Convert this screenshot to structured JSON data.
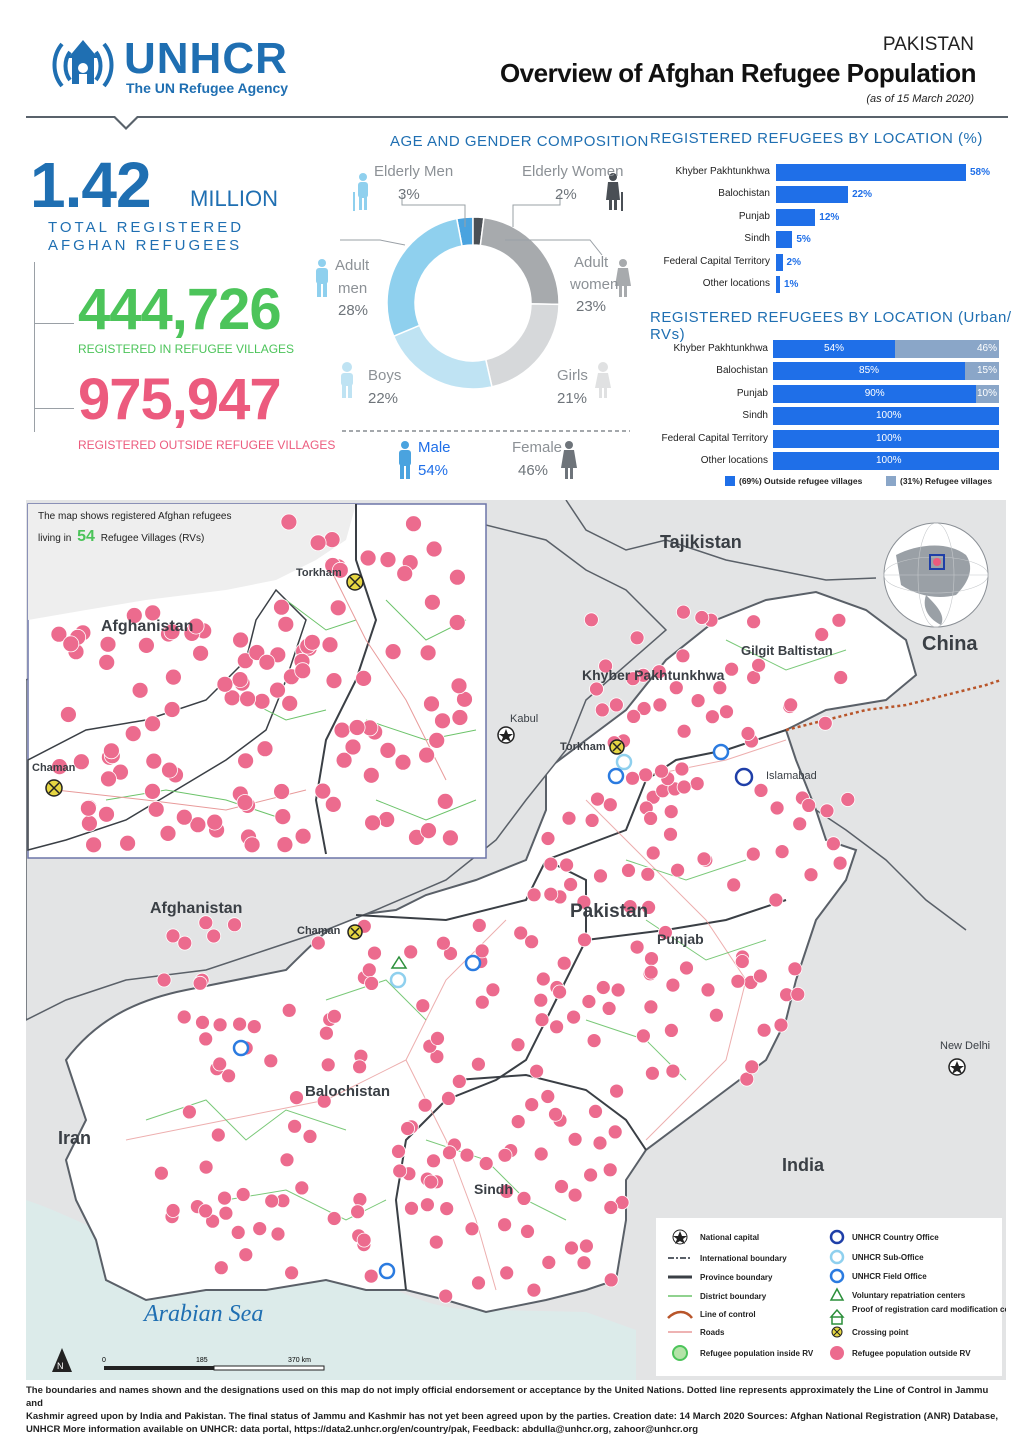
{
  "header": {
    "org_name": "UNHCR",
    "org_tagline": "The UN Refugee Agency",
    "country": "PAKISTAN",
    "title": "Overview of Afghan Refugee Population",
    "as_of": "(as of 15 March 2020)"
  },
  "totals": {
    "total_value": "1.42",
    "total_unit": "MILLION",
    "total_label_line1": "TOTAL REGISTERED",
    "total_label_line2": "AFGHAN REFUGEES",
    "in_rv_value": "444,726",
    "in_rv_label": "REGISTERED IN REFUGEE VILLAGES",
    "outside_rv_value": "975,947",
    "outside_rv_label": "REGISTERED OUTSIDE REFUGEE VILLAGES"
  },
  "age_gender": {
    "title": "AGE AND GENDER COMPOSITION",
    "groups": [
      {
        "label_1": "Elderly Men",
        "label_2": "",
        "pct": "3%",
        "value": 3
      },
      {
        "label_1": "Elderly Women",
        "label_2": "",
        "pct": "2%",
        "value": 2
      },
      {
        "label_1": "Adult",
        "label_2": "women",
        "pct": "23%",
        "value": 23
      },
      {
        "label_1": "Girls",
        "label_2": "",
        "pct": "21%",
        "value": 21
      },
      {
        "label_1": "Boys",
        "label_2": "",
        "pct": "22%",
        "value": 22
      },
      {
        "label_1": "Adult",
        "label_2": "men",
        "pct": "28%",
        "value": 28
      }
    ],
    "male_label": "Male",
    "male_pct": "54%",
    "female_label": "Female",
    "female_pct": "46%",
    "colors": {
      "elderly_men": "#4aa3df",
      "elderly_women": "#4a4f55",
      "adult_women": "#a7aaad",
      "girls": "#d6d8da",
      "boys": "#bfe3f3",
      "adult_men": "#8fd0ee"
    }
  },
  "by_location": {
    "title": "REGISTERED REFUGEES BY LOCATION (%)",
    "rows": [
      {
        "label": "Khyber Pakhtunkhwa",
        "value": 58,
        "text": "58%"
      },
      {
        "label": "Balochistan",
        "value": 22,
        "text": "22%"
      },
      {
        "label": "Punjab",
        "value": 12,
        "text": "12%"
      },
      {
        "label": "Sindh",
        "value": 5,
        "text": "5%"
      },
      {
        "label": "Federal Capital Territory",
        "value": 2,
        "text": "2%"
      },
      {
        "label": "Other locations",
        "value": 1,
        "text": "1%"
      }
    ]
  },
  "urban_rv": {
    "title": "REGISTERED REFUGEES BY LOCATION (Urban/ RVs)",
    "rows": [
      {
        "label": "Khyber Pakhtunkhwa",
        "outside": 54,
        "inside": 46,
        "outside_text": "54%",
        "inside_text": "46%"
      },
      {
        "label": "Balochistan",
        "outside": 85,
        "inside": 15,
        "outside_text": "85%",
        "inside_text": "15%"
      },
      {
        "label": "Punjab",
        "outside": 90,
        "inside": 10,
        "outside_text": "90%",
        "inside_text": "10%"
      },
      {
        "label": "Sindh",
        "outside": 100,
        "inside": 0,
        "outside_text": "100%",
        "inside_text": ""
      },
      {
        "label": "Federal Capital Territory",
        "outside": 100,
        "inside": 0,
        "outside_text": "100%",
        "inside_text": ""
      },
      {
        "label": "Other locations",
        "outside": 100,
        "inside": 0,
        "outside_text": "100%",
        "inside_text": ""
      }
    ],
    "legend_outside": "(69%) Outside refugee villages",
    "legend_inside": "(31%) Refugee villages"
  },
  "map": {
    "inset_note_line1": "The map shows registered Afghan refugees",
    "inset_note_pre": "living in",
    "inset_note_num": "54",
    "inset_note_post": "Refugee Villages (RVs)",
    "country_labels": {
      "afghanistan_inset": "Afghanistan",
      "afghanistan": "Afghanistan",
      "tajikistan": "Tajikistan",
      "china": "China",
      "india": "India",
      "iran": "Iran",
      "pakistan": "Pakistan",
      "sea": "Arabian Sea",
      "new_delhi": "New Delhi",
      "kabul": "Kabul",
      "islamabad": "Islamabad"
    },
    "province_labels": {
      "kp": "Khyber Pakhtunkhwa",
      "gb": "Gilgit Baltistan",
      "punjab": "Punjab",
      "balochistan": "Balochistan",
      "sindh": "Sindh"
    },
    "crossing_labels": {
      "torkham_inset": "Torkham",
      "chaman_inset": "Chaman",
      "torkham": "Torkham",
      "chaman": "Chaman"
    },
    "scale_labels": [
      "0",
      "185",
      "370 km"
    ],
    "legend": [
      "National capital",
      "International boundary",
      "Province boundary",
      "District boundary",
      "Line of control",
      "Roads",
      "Refugee population inside RV",
      "UNHCR Country Office",
      "UNHCR Sub-Office",
      "UNHCR Field Office",
      "Voluntary repatriation centers",
      "Proof of registration card modification centers",
      "Crossing point",
      "Refugee population outside RV"
    ]
  },
  "footer": {
    "line1": "The boundaries and names shown and the designations used on this map do not imply official endorsement or acceptance by the United Nations. Dotted line represents approximately the Line of Control in Jammu and",
    "line2": "Kashmir agreed upon by India and Pakistan. The final status of Jammu and Kashmir has not yet been agreed upon by the parties. Creation date: 14 March 2020 Sources: Afghan National Registration (ANR) Database,",
    "line3": "UNHCR More information available on UNHCR: data portal, https://data2.unhcr.org/en/country/pak, Feedback: abdulla@unhcr.org, zahoor@unhcr.org"
  }
}
